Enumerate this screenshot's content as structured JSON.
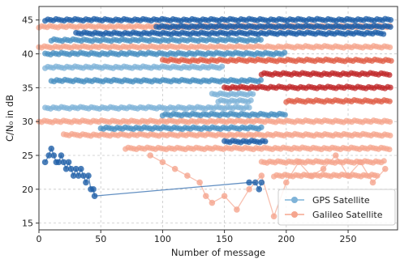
{
  "chart_data": {
    "type": "scatter",
    "title": "",
    "xlabel": "Number of message",
    "ylabel": "C/N₀ in dB",
    "xlim": [
      0,
      290
    ],
    "ylim": [
      14,
      47
    ],
    "xticks": [
      0,
      50,
      100,
      150,
      200,
      250
    ],
    "yticks": [
      15,
      20,
      25,
      30,
      35,
      40,
      45
    ],
    "grid": true,
    "legend_position": "bottom-right",
    "colors": {
      "gps_light": "#7fb3d8",
      "gps_mid": "#4a90c2",
      "gps_dark": "#1f5fa8",
      "gal_light": "#f5a58e",
      "gal_mid": "#e0604a",
      "gal_dark": "#c0282a",
      "mixed": "#8a8fa8"
    },
    "series": [
      {
        "name": "GPS Satellite",
        "tracks": [
          {
            "level": 45,
            "shade": "dark",
            "x": [
              5,
              285
            ]
          },
          {
            "level": 44,
            "shade": "dark",
            "x": [
              95,
              285
            ]
          },
          {
            "level": 43,
            "shade": "dark",
            "x": [
              30,
              280
            ]
          },
          {
            "level": 42,
            "shade": "mid",
            "x": [
              10,
              180
            ]
          },
          {
            "level": 40,
            "shade": "mid",
            "x": [
              5,
              200
            ]
          },
          {
            "level": 38,
            "shade": "light",
            "x": [
              5,
              150
            ]
          },
          {
            "level": 36,
            "shade": "mid",
            "x": [
              10,
              180
            ]
          },
          {
            "level": 34,
            "shade": "light",
            "x": [
              140,
              175
            ]
          },
          {
            "level": 33,
            "shade": "light",
            "x": [
              145,
              172
            ]
          },
          {
            "level": 32,
            "shade": "light",
            "x": [
              5,
              170
            ]
          },
          {
            "level": 31,
            "shade": "mid",
            "x": [
              100,
              200
            ]
          },
          {
            "level": 29,
            "shade": "mid",
            "x": [
              50,
              180
            ]
          },
          {
            "level": 27,
            "shade": "dark",
            "x": [
              150,
              185
            ]
          }
        ],
        "trail": {
          "x": [
            5,
            8,
            10,
            12,
            14,
            16,
            18,
            20,
            22,
            24,
            26,
            28,
            30,
            32,
            34,
            36,
            38,
            40,
            42,
            44,
            45,
            170,
            175,
            178,
            180
          ],
          "y": [
            24,
            25,
            26,
            25,
            24,
            24,
            25,
            24,
            23,
            24,
            23,
            22,
            23,
            22,
            23,
            22,
            21,
            22,
            20,
            20,
            19,
            21,
            21,
            20,
            21
          ]
        }
      },
      {
        "name": "Galileo Satellite",
        "tracks": [
          {
            "level": 44,
            "shade": "light",
            "x": [
              0,
              285
            ]
          },
          {
            "level": 41,
            "shade": "light",
            "x": [
              0,
              285
            ]
          },
          {
            "level": 39,
            "shade": "mid",
            "x": [
              100,
              285
            ]
          },
          {
            "level": 37,
            "shade": "dark",
            "x": [
              180,
              285
            ]
          },
          {
            "level": 35,
            "shade": "dark",
            "x": [
              150,
              285
            ]
          },
          {
            "level": 33,
            "shade": "mid",
            "x": [
              200,
              285
            ]
          },
          {
            "level": 30,
            "shade": "light",
            "x": [
              0,
              285
            ]
          },
          {
            "level": 28,
            "shade": "light",
            "x": [
              20,
              285
            ]
          },
          {
            "level": 26,
            "shade": "light",
            "x": [
              70,
              285
            ]
          },
          {
            "level": 24,
            "shade": "light",
            "x": [
              180,
              280
            ]
          },
          {
            "level": 22,
            "shade": "light",
            "x": [
              190,
              275
            ]
          }
        ],
        "trail": {
          "x": [
            90,
            100,
            110,
            120,
            130,
            135,
            140,
            150,
            160,
            170,
            180,
            190,
            200,
            210,
            220,
            230,
            240,
            250,
            260,
            270,
            280
          ],
          "y": [
            25,
            24,
            23,
            22,
            21,
            19,
            18,
            19,
            17,
            20,
            22,
            16,
            21,
            24,
            22,
            23,
            25,
            22,
            24,
            21,
            23
          ]
        }
      }
    ]
  }
}
